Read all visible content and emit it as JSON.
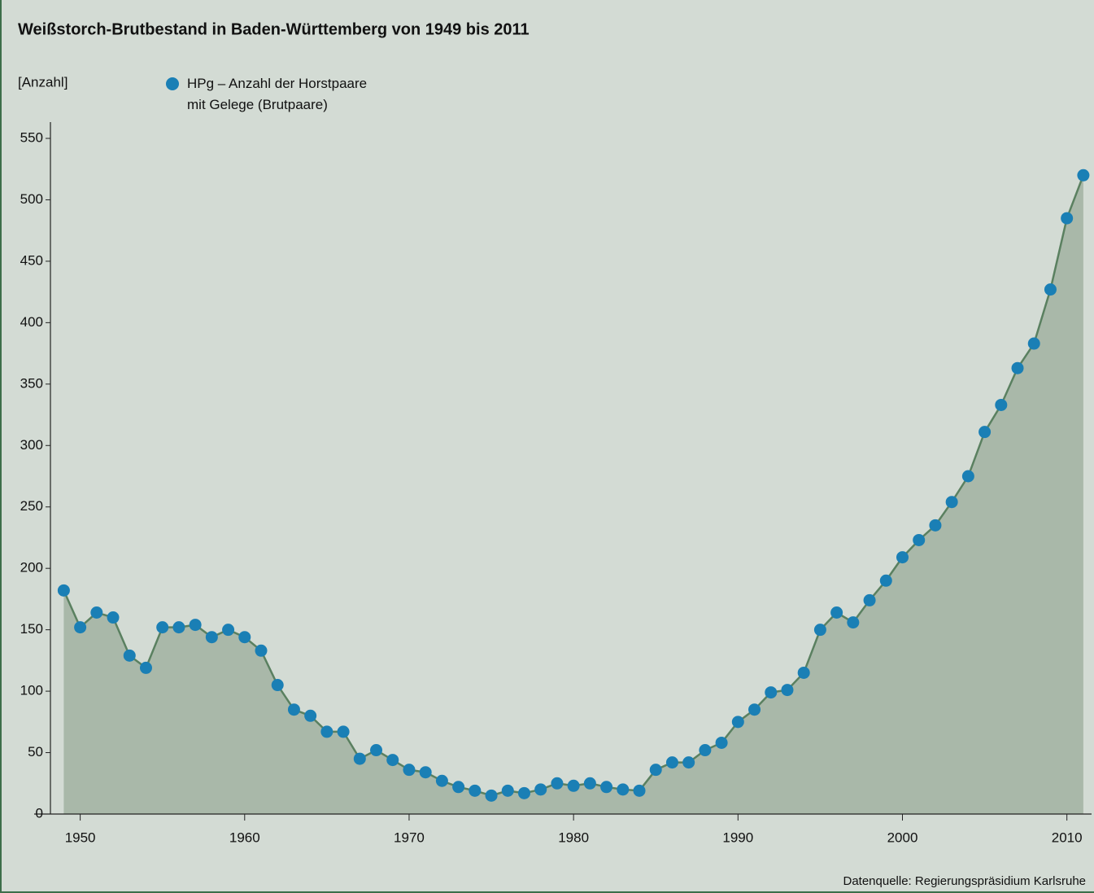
{
  "chart_data": {
    "type": "line",
    "title": "Weißstorch-Brutbestand in Baden-Württemberg von 1949 bis 2011",
    "y_label": "[Anzahl]",
    "source": "Datenquelle: Regierungspräsidium Karlsruhe",
    "x": [
      1949,
      1950,
      1951,
      1952,
      1953,
      1954,
      1955,
      1956,
      1957,
      1958,
      1959,
      1960,
      1961,
      1962,
      1963,
      1964,
      1965,
      1966,
      1967,
      1968,
      1969,
      1970,
      1971,
      1972,
      1973,
      1974,
      1975,
      1976,
      1977,
      1978,
      1979,
      1980,
      1981,
      1982,
      1983,
      1984,
      1985,
      1986,
      1987,
      1988,
      1989,
      1990,
      1991,
      1992,
      1993,
      1994,
      1995,
      1996,
      1997,
      1998,
      1999,
      2000,
      2001,
      2002,
      2003,
      2004,
      2005,
      2006,
      2007,
      2008,
      2009,
      2010,
      2011
    ],
    "series": [
      {
        "name": "HPg – Anzahl der Horstpaare mit Gelege (Brutpaare)",
        "color": "#1a7fb5",
        "line_color": "#5a8060",
        "area_color": "#a9b8a9",
        "values": [
          182,
          152,
          164,
          160,
          129,
          119,
          152,
          152,
          154,
          144,
          150,
          144,
          133,
          105,
          85,
          80,
          67,
          67,
          45,
          52,
          44,
          36,
          34,
          27,
          22,
          19,
          15,
          19,
          17,
          20,
          25,
          23,
          25,
          22,
          20,
          19,
          36,
          42,
          42,
          52,
          58,
          75,
          85,
          99,
          101,
          115,
          150,
          164,
          156,
          174,
          190,
          209,
          223,
          235,
          254,
          275,
          311,
          333,
          363,
          383,
          427,
          485,
          520
        ]
      }
    ],
    "xlim": [
      1947.2,
      2011.5
    ],
    "xticks": [
      1950,
      1960,
      1970,
      1980,
      1990,
      2000,
      2010
    ],
    "ylim": [
      0,
      550
    ],
    "yticks": [
      0,
      50,
      100,
      150,
      200,
      250,
      300,
      350,
      400,
      450,
      500,
      550
    ]
  }
}
